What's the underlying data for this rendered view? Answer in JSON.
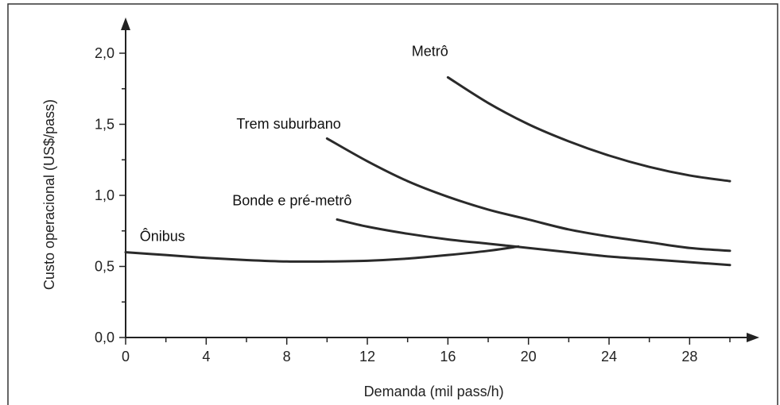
{
  "chart_data": {
    "type": "line",
    "title": "",
    "xlabel": "Demanda (mil pass/h)",
    "ylabel": "Custo operacional (US$/pass)",
    "xlim": [
      0,
      31
    ],
    "ylim": [
      0,
      2.3
    ],
    "x_ticks": [
      0,
      4,
      8,
      12,
      16,
      20,
      24,
      28
    ],
    "x_tick_labels": [
      "0",
      "4",
      "8",
      "12",
      "16",
      "20",
      "24",
      "28"
    ],
    "x_minor_ticks": [
      2,
      6,
      10,
      14,
      18,
      22,
      26,
      30
    ],
    "y_ticks": [
      0,
      0.5,
      1.0,
      1.5,
      2.0
    ],
    "y_tick_labels": [
      "0,0",
      "0,5",
      "1,0",
      "1,5",
      "2,0"
    ],
    "y_minor_ticks": [
      0.25,
      0.75,
      1.25,
      1.75
    ],
    "grid": false,
    "legend": "labels placed directly on curves",
    "series": [
      {
        "name": "Metrô",
        "x": [
          16,
          18,
          20,
          22,
          24,
          26,
          28,
          30
        ],
        "y": [
          1.83,
          1.65,
          1.5,
          1.38,
          1.28,
          1.2,
          1.14,
          1.1
        ]
      },
      {
        "name": "Trem suburbano",
        "x": [
          10,
          12,
          14,
          16,
          18,
          20,
          22,
          24,
          26,
          28,
          30
        ],
        "y": [
          1.4,
          1.24,
          1.1,
          0.99,
          0.9,
          0.83,
          0.76,
          0.71,
          0.67,
          0.63,
          0.61
        ]
      },
      {
        "name": "Bonde e pré-metrô",
        "x": [
          10.5,
          12,
          14,
          16,
          18,
          20,
          22,
          24,
          26,
          28,
          30
        ],
        "y": [
          0.83,
          0.78,
          0.73,
          0.69,
          0.66,
          0.63,
          0.6,
          0.57,
          0.55,
          0.53,
          0.51
        ]
      },
      {
        "name": "Ônibus",
        "x": [
          0,
          2,
          4,
          6,
          8,
          10,
          12,
          14,
          16,
          18,
          19.5
        ],
        "y": [
          0.6,
          0.58,
          0.56,
          0.545,
          0.535,
          0.535,
          0.54,
          0.555,
          0.58,
          0.61,
          0.64
        ]
      }
    ],
    "labels": [
      {
        "text": "Metrô",
        "x": 14.2,
        "y": 1.98
      },
      {
        "text": "Trem suburbano",
        "x": 5.5,
        "y": 1.47
      },
      {
        "text": "Bonde e pré-metrô",
        "x": 5.3,
        "y": 0.93
      },
      {
        "text": "Ônibus",
        "x": 0.7,
        "y": 0.68
      }
    ]
  }
}
